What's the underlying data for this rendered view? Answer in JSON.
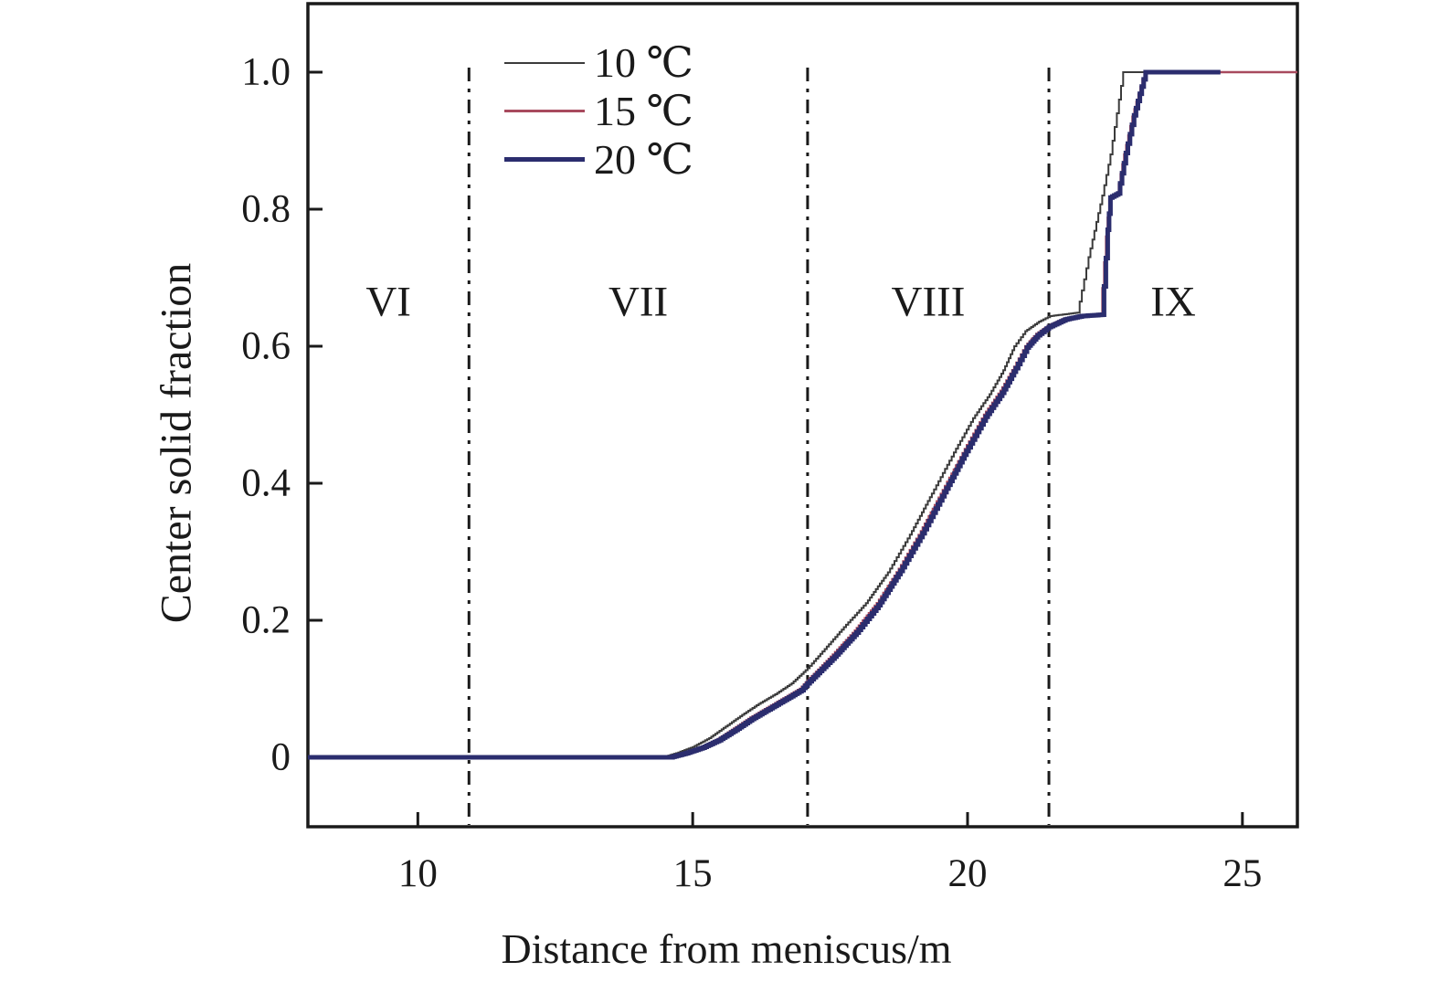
{
  "chart_data": {
    "type": "line",
    "title": "",
    "xlabel": "Distance from meniscus/m",
    "ylabel": "Center solid fraction",
    "xlim": [
      8,
      26
    ],
    "ylim": [
      0,
      1.0
    ],
    "x_ticks": [
      10,
      15,
      20,
      25
    ],
    "x_tick_labels": [
      "10",
      "15",
      "20",
      "25"
    ],
    "y_ticks": [
      0,
      0.2,
      0.4,
      0.6,
      0.8,
      1.0
    ],
    "y_tick_labels": [
      "0",
      "0.2",
      "0.4",
      "0.6",
      "0.8",
      "1.0"
    ],
    "grid": false,
    "legend_position": "top-left-inside",
    "legend_entries": [
      "10 ℃",
      "15 ℃",
      "20 ℃"
    ],
    "region_labels": [
      "VI",
      "VII",
      "VIII",
      "IX"
    ],
    "region_boundaries_x": [
      10.93,
      17.09,
      21.48
    ],
    "boundary_line_style": "dash-dot-vertical",
    "series": [
      {
        "name": "10 ℃",
        "color": "#3b3b3b",
        "line_width": 2,
        "points": [
          [
            8,
            0
          ],
          [
            14.45,
            0
          ],
          [
            14.7,
            0.006
          ],
          [
            15.0,
            0.015
          ],
          [
            15.3,
            0.028
          ],
          [
            15.6,
            0.045
          ],
          [
            15.9,
            0.062
          ],
          [
            16.2,
            0.078
          ],
          [
            16.5,
            0.092
          ],
          [
            16.8,
            0.108
          ],
          [
            17.09,
            0.13
          ],
          [
            17.4,
            0.158
          ],
          [
            17.75,
            0.19
          ],
          [
            18.15,
            0.225
          ],
          [
            18.55,
            0.27
          ],
          [
            18.95,
            0.325
          ],
          [
            19.35,
            0.385
          ],
          [
            19.75,
            0.445
          ],
          [
            20.1,
            0.495
          ],
          [
            20.4,
            0.53
          ],
          [
            20.65,
            0.565
          ],
          [
            20.85,
            0.6
          ],
          [
            21.05,
            0.622
          ],
          [
            21.3,
            0.636
          ],
          [
            21.5,
            0.644
          ],
          [
            22.0,
            0.649
          ],
          [
            22.2,
            0.73
          ],
          [
            22.45,
            0.82
          ],
          [
            22.6,
            0.88
          ],
          [
            22.83,
            1.0
          ],
          [
            26,
            1.0
          ]
        ]
      },
      {
        "name": "15 ℃",
        "color": "#a84a5e",
        "line_width": 2.5,
        "points": [
          [
            8,
            0
          ],
          [
            14.6,
            0
          ],
          [
            14.85,
            0.006
          ],
          [
            15.15,
            0.014
          ],
          [
            15.45,
            0.026
          ],
          [
            15.75,
            0.042
          ],
          [
            16.05,
            0.058
          ],
          [
            16.35,
            0.072
          ],
          [
            16.65,
            0.086
          ],
          [
            16.95,
            0.1
          ],
          [
            17.09,
            0.112
          ],
          [
            17.55,
            0.15
          ],
          [
            17.95,
            0.185
          ],
          [
            18.35,
            0.225
          ],
          [
            18.75,
            0.275
          ],
          [
            19.15,
            0.33
          ],
          [
            19.55,
            0.39
          ],
          [
            19.95,
            0.45
          ],
          [
            20.3,
            0.5
          ],
          [
            20.6,
            0.535
          ],
          [
            20.85,
            0.57
          ],
          [
            21.05,
            0.6
          ],
          [
            21.25,
            0.618
          ],
          [
            21.48,
            0.63
          ],
          [
            21.75,
            0.64
          ],
          [
            22.05,
            0.645
          ],
          [
            22.42,
            0.647
          ],
          [
            22.52,
            0.76
          ],
          [
            22.58,
            0.815
          ],
          [
            22.72,
            0.822
          ],
          [
            22.85,
            0.88
          ],
          [
            23.0,
            0.935
          ],
          [
            23.22,
            1.0
          ],
          [
            26,
            1.0
          ]
        ]
      },
      {
        "name": "20 ℃",
        "color": "#2b2d6e",
        "line_width": 5,
        "points": [
          [
            8,
            0
          ],
          [
            14.6,
            0
          ],
          [
            14.88,
            0.006
          ],
          [
            15.18,
            0.014
          ],
          [
            15.48,
            0.025
          ],
          [
            15.78,
            0.04
          ],
          [
            16.08,
            0.056
          ],
          [
            16.38,
            0.07
          ],
          [
            16.68,
            0.084
          ],
          [
            16.98,
            0.098
          ],
          [
            17.09,
            0.108
          ],
          [
            17.58,
            0.147
          ],
          [
            17.98,
            0.182
          ],
          [
            18.38,
            0.222
          ],
          [
            18.78,
            0.272
          ],
          [
            19.18,
            0.327
          ],
          [
            19.58,
            0.387
          ],
          [
            19.98,
            0.447
          ],
          [
            20.33,
            0.497
          ],
          [
            20.63,
            0.532
          ],
          [
            20.88,
            0.568
          ],
          [
            21.08,
            0.598
          ],
          [
            21.28,
            0.616
          ],
          [
            21.48,
            0.628
          ],
          [
            21.78,
            0.639
          ],
          [
            22.08,
            0.644
          ],
          [
            22.45,
            0.646
          ],
          [
            22.55,
            0.77
          ],
          [
            22.6,
            0.817
          ],
          [
            22.74,
            0.823
          ],
          [
            22.88,
            0.882
          ],
          [
            23.03,
            0.937
          ],
          [
            23.24,
            1.0
          ],
          [
            24.6,
            1.0
          ]
        ]
      }
    ],
    "colors": {
      "frame": "#1a1a1a",
      "boundary_lines": "#1a1a1a",
      "background": "#ffffff",
      "text": "#1a1a1a"
    }
  }
}
